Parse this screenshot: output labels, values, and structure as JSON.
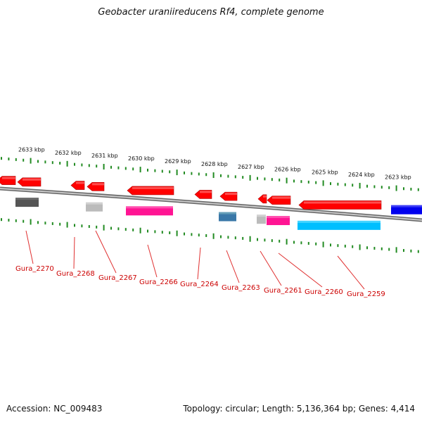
{
  "title": "Geobacter uraniireducens Rf4, complete genome",
  "footer": {
    "accession": "Accession: NC_009483",
    "stats": "Topology: circular; Length: 5,136,364 bp; Genes: 4,414"
  },
  "scale_labels": [
    "2633 kbp",
    "2632 kbp",
    "2631 kbp",
    "2630 kbp",
    "2629 kbp",
    "2628 kbp",
    "2627 kbp",
    "2626 kbp",
    "2625 kbp",
    "2624 kbp",
    "2623 kbp"
  ],
  "gene_labels": [
    "Gura_2270",
    "Gura_2268",
    "Gura_2267",
    "Gura_2266",
    "Gura_2264",
    "Gura_2263",
    "Gura_2261",
    "Gura_2260",
    "Gura_2259"
  ],
  "colors": {
    "forward_gene": "#ff0000",
    "grey_gene": "#555555",
    "light_grey_gene": "#bbbbbb",
    "magenta_gene": "#ff1493",
    "steel_gene": "#3a78a8",
    "cyan_gene": "#00bfff",
    "blue_gene": "#0000ee",
    "tick_green": "#228b22",
    "label_red": "#cc0000",
    "backbone": "#888888"
  }
}
